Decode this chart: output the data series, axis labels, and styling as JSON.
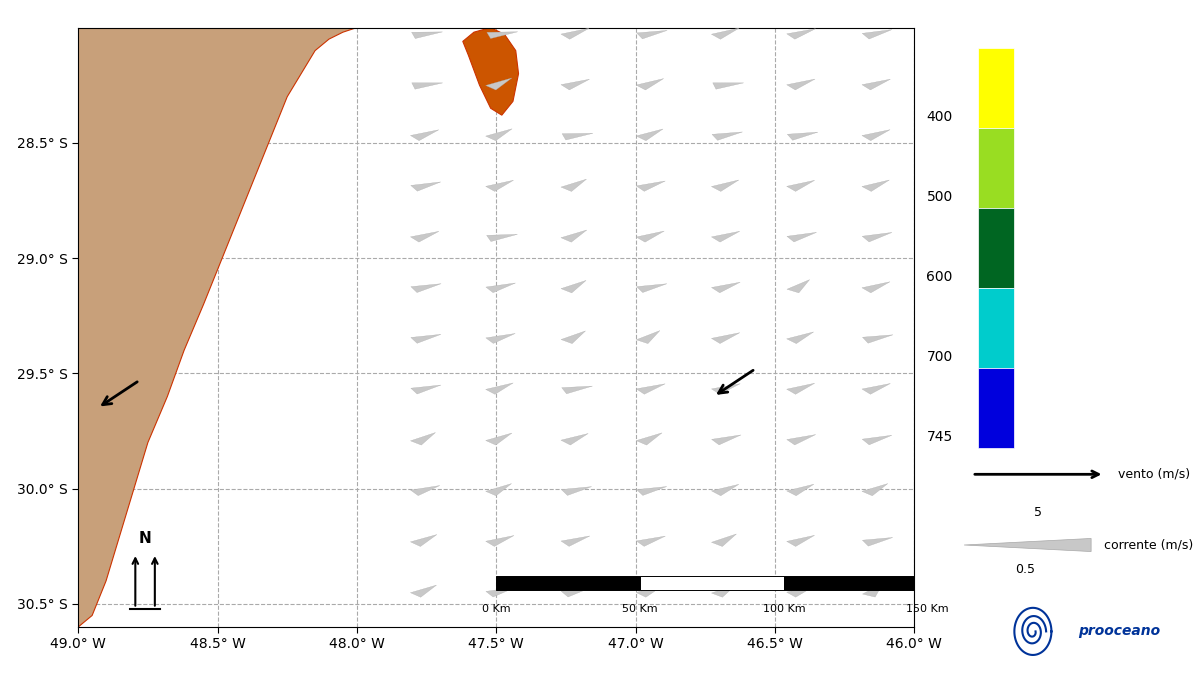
{
  "xlim": [
    -49.0,
    -46.0
  ],
  "ylim": [
    -30.6,
    -28.0
  ],
  "xticks": [
    -49.0,
    -48.5,
    -48.0,
    -47.5,
    -47.0,
    -46.5,
    -46.0
  ],
  "yticks": [
    -28.5,
    -29.0,
    -29.5,
    -30.0,
    -30.5
  ],
  "xlabel_labels": [
    "49.0° W",
    "48.5° W",
    "48.0° W",
    "47.5° W",
    "47.0° W",
    "46.5° W",
    "46.0° W"
  ],
  "ylabel_labels": [
    "28.5° S",
    "29.0° S",
    "29.5° S",
    "30.0° S",
    "30.5° S"
  ],
  "background_color": "#ffffff",
  "land_color": "#c8a07a",
  "land_border_color": "#cc3300",
  "island_color": "#cc5500",
  "grid_color": "#aaaaaa",
  "grid_style": "--",
  "cb_colors": [
    "#ffff00",
    "#99dd22",
    "#006622",
    "#00cccc",
    "#0000dd"
  ],
  "cb_labels": [
    "400",
    "500",
    "600",
    "700",
    "745"
  ],
  "figsize": [
    12.03,
    6.89
  ],
  "dpi": 100,
  "land_coast_x": [
    -49.0,
    -49.0,
    -48.95,
    -48.9,
    -48.85,
    -48.8,
    -48.75,
    -48.68,
    -48.62,
    -48.55,
    -48.5,
    -48.45,
    -48.4,
    -48.35,
    -48.3,
    -48.25,
    -48.2,
    -48.15,
    -48.1,
    -48.05,
    -48.0
  ],
  "land_coast_y": [
    -28.0,
    -30.6,
    -30.55,
    -30.4,
    -30.2,
    -30.0,
    -29.8,
    -29.6,
    -29.4,
    -29.2,
    -29.05,
    -28.9,
    -28.75,
    -28.6,
    -28.45,
    -28.3,
    -28.2,
    -28.1,
    -28.05,
    -28.02,
    -28.0
  ],
  "island_x": [
    -47.58,
    -47.52,
    -47.47,
    -47.43,
    -47.42,
    -47.44,
    -47.48,
    -47.52,
    -47.56,
    -47.6,
    -47.62
  ],
  "island_y": [
    -28.02,
    -28.0,
    -28.03,
    -28.1,
    -28.2,
    -28.32,
    -28.38,
    -28.35,
    -28.25,
    -28.12,
    -28.06
  ],
  "wind_arrow1_from": [
    -48.78,
    -29.53
  ],
  "wind_arrow1_to": [
    -48.93,
    -29.65
  ],
  "wind_arrow2_from": [
    -46.57,
    -29.48
  ],
  "wind_arrow2_to": [
    -46.72,
    -29.6
  ]
}
